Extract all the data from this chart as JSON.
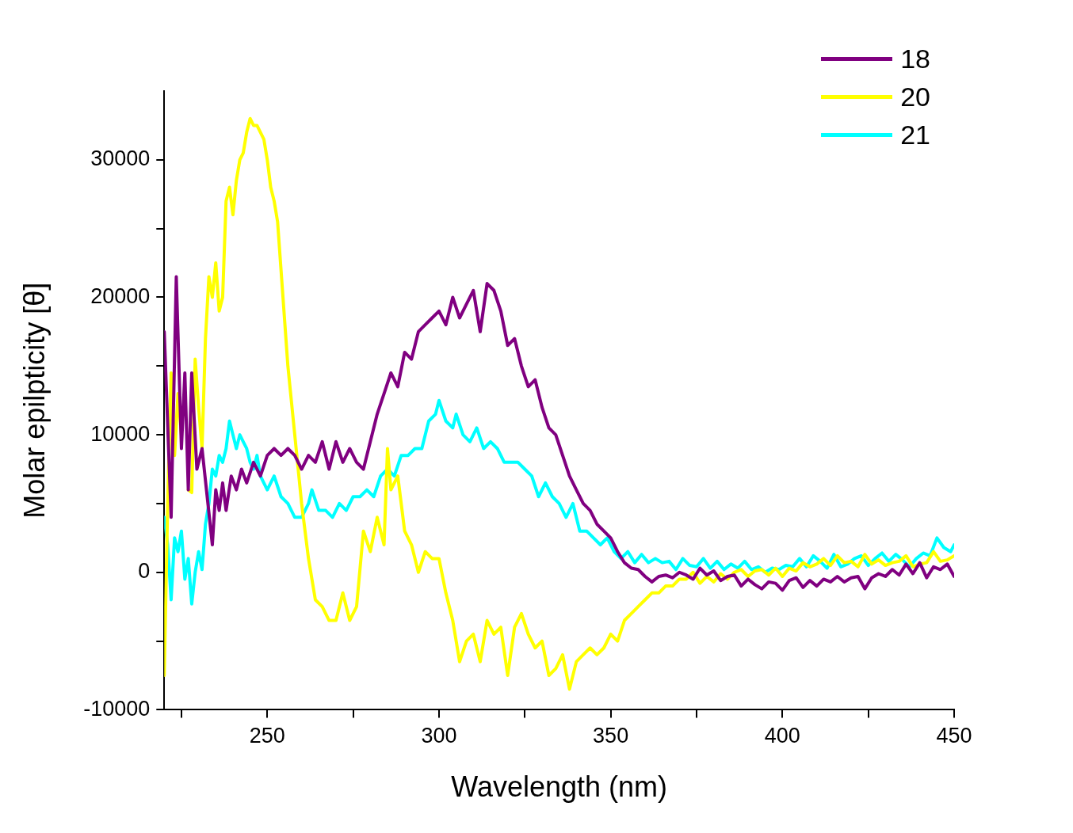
{
  "chart_data": {
    "type": "line",
    "xlabel": "Wavelength (nm)",
    "ylabel": "Molar epilpticity [θ]",
    "xlim": [
      220,
      450
    ],
    "ylim": [
      -10000,
      35000
    ],
    "xticks": [
      {
        "value": 225,
        "label": null
      },
      250,
      {
        "value": 275,
        "label": null
      },
      300,
      {
        "value": 325,
        "label": null
      },
      350,
      {
        "value": 375,
        "label": null
      },
      400,
      {
        "value": 425,
        "label": null
      },
      450
    ],
    "yticks": [
      -10000,
      {
        "value": -5000,
        "label": null
      },
      0,
      {
        "value": 5000,
        "label": null
      },
      10000,
      {
        "value": 15000,
        "label": null
      },
      20000,
      {
        "value": 25000,
        "label": null
      },
      30000
    ],
    "grid": false,
    "legend": "top right",
    "marker": "none",
    "line_style": "solid",
    "series": [
      {
        "name": "18",
        "color": "#800080",
        "x": [
          220,
          222,
          223.5,
          225,
          226,
          227,
          228,
          229.5,
          231,
          232.5,
          234,
          235,
          236,
          237,
          238,
          239.5,
          241,
          242.5,
          244,
          246,
          248,
          250,
          252,
          254,
          256,
          258,
          260,
          262,
          264,
          266,
          268,
          270,
          272,
          274,
          276,
          278,
          280,
          282,
          284,
          286,
          288,
          290,
          292,
          294,
          296,
          298,
          300,
          302,
          304,
          306,
          308,
          310,
          312,
          314,
          316,
          318,
          320,
          322,
          324,
          326,
          328,
          330,
          332,
          334,
          336,
          338,
          340,
          342,
          344,
          346,
          348,
          350,
          352,
          354,
          356,
          358,
          360,
          362,
          364,
          366,
          368,
          370,
          372,
          374,
          376,
          378,
          380,
          382,
          384,
          386,
          388,
          390,
          392,
          394,
          396,
          398,
          400,
          402,
          404,
          406,
          408,
          410,
          412,
          414,
          416,
          418,
          420,
          422,
          424,
          426,
          428,
          430,
          432,
          434,
          436,
          438,
          440,
          442,
          444,
          446,
          448,
          450
        ],
        "values": [
          17500,
          4000,
          21500,
          9000,
          14500,
          6000,
          14500,
          7500,
          9000,
          5500,
          2000,
          6000,
          4500,
          6500,
          4500,
          7000,
          6000,
          7500,
          6500,
          8000,
          7000,
          8500,
          9000,
          8500,
          9000,
          8500,
          7500,
          8500,
          8000,
          9500,
          7500,
          9500,
          8000,
          9000,
          8000,
          7500,
          9500,
          11500,
          13000,
          14500,
          13500,
          16000,
          15500,
          17500,
          18000,
          18500,
          19000,
          18000,
          20000,
          18500,
          19500,
          20500,
          17500,
          21000,
          20500,
          19000,
          16500,
          17000,
          15000,
          13500,
          14000,
          12000,
          10500,
          10000,
          8500,
          7000,
          6000,
          5000,
          4500,
          3500,
          3000,
          2500,
          1500,
          700,
          300,
          200,
          -300,
          -700,
          -300,
          -200,
          -400,
          0,
          -200,
          -500,
          300,
          -200,
          100,
          -600,
          -300,
          -200,
          -1000,
          -500,
          -900,
          -1200,
          -700,
          -800,
          -1300,
          -600,
          -400,
          -1100,
          -600,
          -1000,
          -500,
          -700,
          -300,
          -700,
          -400,
          -300,
          -1200,
          -400,
          -100,
          -300,
          200,
          -200,
          600,
          -100,
          700,
          -400,
          400,
          200,
          600,
          -300
        ]
      },
      {
        "name": "20",
        "color": "#ffff00",
        "x": [
          220,
          221,
          222,
          223,
          224,
          225,
          226,
          227,
          228,
          229,
          230,
          231,
          232,
          233,
          234,
          235,
          236,
          237,
          238,
          239,
          240,
          241,
          242,
          243,
          244,
          245,
          246,
          247,
          248,
          249,
          250,
          251,
          252,
          253,
          254,
          256,
          258,
          260,
          262,
          264,
          266,
          268,
          270,
          272,
          274,
          276,
          278,
          280,
          282,
          284,
          285,
          286,
          288,
          290,
          292,
          294,
          296,
          298,
          300,
          302,
          304,
          306,
          308,
          310,
          312,
          314,
          316,
          318,
          320,
          322,
          324,
          326,
          328,
          330,
          332,
          334,
          336,
          338,
          340,
          342,
          344,
          346,
          348,
          350,
          352,
          354,
          356,
          358,
          360,
          362,
          364,
          366,
          368,
          370,
          372,
          374,
          376,
          378,
          380,
          382,
          384,
          386,
          388,
          390,
          392,
          394,
          396,
          398,
          400,
          402,
          404,
          406,
          408,
          410,
          412,
          414,
          416,
          418,
          420,
          422,
          424,
          426,
          428,
          430,
          432,
          434,
          436,
          438,
          440,
          442,
          444,
          446,
          448,
          450
        ],
        "values": [
          -7500,
          5000,
          14500,
          8500,
          13000,
          10000,
          null,
          6000,
          5800,
          15500,
          12000,
          9000,
          17000,
          21500,
          20000,
          22500,
          19000,
          20000,
          27000,
          28000,
          26000,
          28500,
          30000,
          30500,
          32000,
          33000,
          32500,
          32500,
          32000,
          31500,
          30000,
          28000,
          27000,
          25500,
          22000,
          15000,
          10000,
          5000,
          1000,
          -2000,
          -2500,
          -3500,
          -3500,
          -1500,
          -3500,
          -2500,
          3000,
          1500,
          4000,
          2000,
          9000,
          6000,
          7000,
          3000,
          2000,
          0,
          1500,
          1000,
          1000,
          -1500,
          -3500,
          -6500,
          -5000,
          -4500,
          -6500,
          -3500,
          -4500,
          -4000,
          -7500,
          -4000,
          -3000,
          -4500,
          -5500,
          -5000,
          -7500,
          -7000,
          -6000,
          -8500,
          -6500,
          -6000,
          -5500,
          -6000,
          -5500,
          -4500,
          -5000,
          -3500,
          -3000,
          -2500,
          -2000,
          -1500,
          -1500,
          -1000,
          -1000,
          -500,
          -500,
          0,
          -800,
          -300,
          -700,
          -100,
          -500,
          0,
          200,
          -300,
          100,
          200,
          -200,
          300,
          -300,
          300,
          100,
          700,
          400,
          600,
          1000,
          500,
          1200,
          700,
          800,
          400,
          1300,
          600,
          900,
          500,
          700,
          800,
          1200,
          400,
          600,
          700,
          1500,
          800,
          900,
          1200
        ]
      },
      {
        "name": "21",
        "color": "#00ffff",
        "x": [
          220,
          221,
          222,
          223,
          224,
          225,
          226,
          227,
          228,
          229,
          230,
          231,
          232,
          233,
          234,
          235,
          236,
          237,
          238,
          239,
          240,
          241,
          242,
          243,
          244,
          245,
          246,
          247,
          248,
          250,
          252,
          254,
          256,
          258,
          260,
          262,
          263,
          265,
          267,
          269,
          271,
          273,
          275,
          277,
          279,
          281,
          283,
          285,
          287,
          289,
          291,
          293,
          295,
          297,
          299,
          300,
          302,
          304,
          305,
          307,
          309,
          311,
          313,
          315,
          317,
          319,
          321,
          323,
          325,
          327,
          329,
          331,
          333,
          335,
          337,
          339,
          341,
          343,
          345,
          347,
          349,
          351,
          353,
          355,
          357,
          359,
          361,
          363,
          365,
          367,
          369,
          371,
          373,
          375,
          377,
          379,
          381,
          383,
          385,
          387,
          389,
          391,
          393,
          395,
          397,
          399,
          401,
          403,
          405,
          407,
          409,
          411,
          413,
          415,
          417,
          419,
          421,
          423,
          425,
          427,
          429,
          431,
          433,
          435,
          437,
          439,
          441,
          443,
          445,
          447,
          449,
          450
        ],
        "values": [
          4000,
          2000,
          -2000,
          2500,
          1500,
          3000,
          -500,
          1000,
          -2300,
          0,
          1500,
          200,
          3500,
          5000,
          7500,
          7000,
          8500,
          8000,
          9000,
          11000,
          10000,
          9000,
          10000,
          9500,
          9000,
          8000,
          7500,
          8500,
          7000,
          6000,
          7000,
          5500,
          5000,
          4000,
          4000,
          5000,
          6000,
          4500,
          4500,
          4000,
          5000,
          4500,
          5500,
          5500,
          6000,
          5500,
          7000,
          7500,
          7000,
          8500,
          8500,
          9000,
          9000,
          11000,
          11500,
          12500,
          11000,
          10500,
          11500,
          10000,
          9500,
          10500,
          9000,
          9500,
          9000,
          8000,
          8000,
          8000,
          7500,
          7000,
          5500,
          6500,
          5500,
          5000,
          4000,
          5000,
          3000,
          3000,
          2500,
          2000,
          2500,
          1500,
          1000,
          1500,
          700,
          1300,
          700,
          1000,
          700,
          800,
          200,
          1000,
          500,
          400,
          1000,
          300,
          800,
          200,
          600,
          300,
          800,
          200,
          400,
          0,
          300,
          200,
          500,
          400,
          1000,
          400,
          1200,
          800,
          300,
          1300,
          400,
          600,
          1000,
          1200,
          500,
          1000,
          1400,
          800,
          1300,
          900,
          400,
          1000,
          1400,
          1200,
          2500,
          1800,
          1500,
          2000
        ]
      }
    ]
  }
}
